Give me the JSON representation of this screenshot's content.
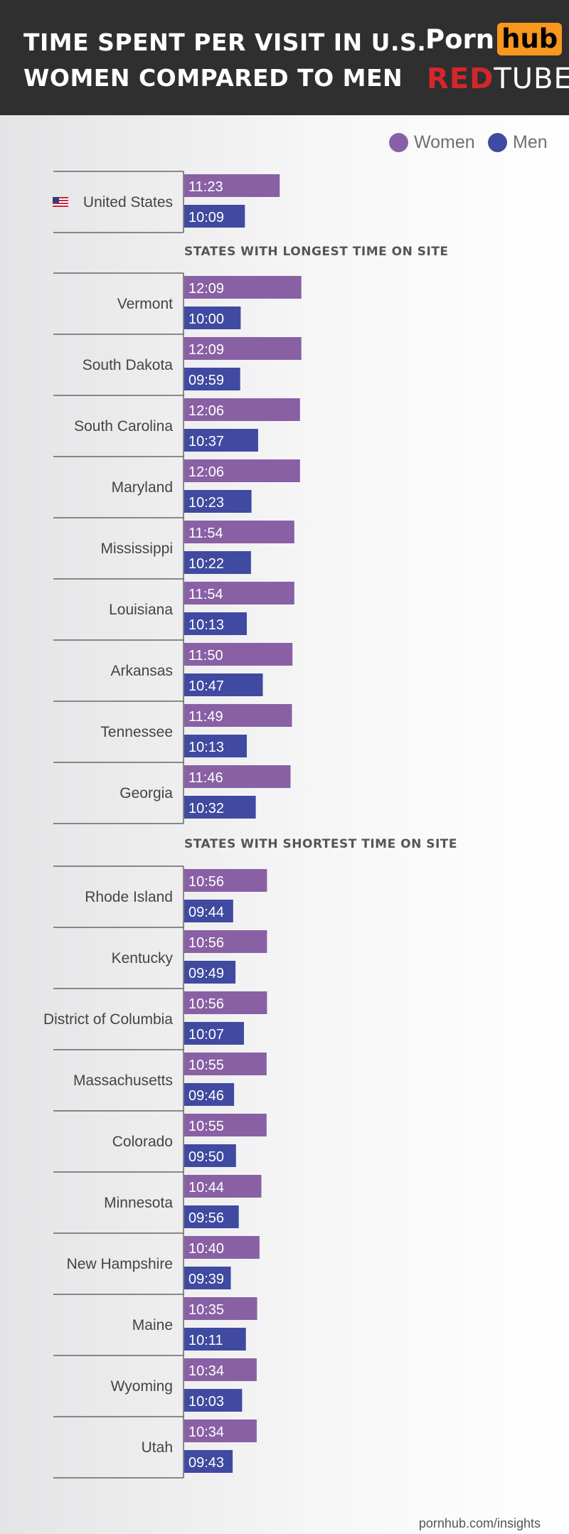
{
  "header": {
    "title_line1": "TIME SPENT PER VISIT IN U.S.",
    "title_line2": "WOMEN COMPARED TO MEN",
    "logo1_part1": "Porn",
    "logo1_part2": "hub",
    "logo2_part1": "RED",
    "logo2_part2": "TUBE"
  },
  "colors": {
    "women": "#8960a4",
    "men": "#3f4aa0",
    "header_bg": "#2f2f2f",
    "pornhub_orange": "#f7971d",
    "redtube_red": "#d5262b"
  },
  "legend": {
    "women": "Women",
    "men": "Men"
  },
  "footer": "pornhub.com/insights",
  "chart_data": {
    "type": "bar",
    "orientation": "horizontal",
    "title": "TIME SPENT PER VISIT IN U.S. WOMEN COMPARED TO MEN",
    "value_format": "mm:ss",
    "series_names": [
      "Women",
      "Men"
    ],
    "groups": [
      {
        "heading": "",
        "rows": [
          {
            "label": "United States",
            "women": "11:23",
            "men": "10:09",
            "icon": "us-flag-icon"
          }
        ]
      },
      {
        "heading": "STATES WITH LONGEST TIME ON SITE",
        "rows": [
          {
            "label": "Vermont",
            "women": "12:09",
            "men": "10:00"
          },
          {
            "label": "South Dakota",
            "women": "12:09",
            "men": "09:59"
          },
          {
            "label": "South Carolina",
            "women": "12:06",
            "men": "10:37"
          },
          {
            "label": "Maryland",
            "women": "12:06",
            "men": "10:23"
          },
          {
            "label": "Mississippi",
            "women": "11:54",
            "men": "10:22"
          },
          {
            "label": "Louisiana",
            "women": "11:54",
            "men": "10:13"
          },
          {
            "label": "Arkansas",
            "women": "11:50",
            "men": "10:47"
          },
          {
            "label": "Tennessee",
            "women": "11:49",
            "men": "10:13"
          },
          {
            "label": "Georgia",
            "women": "11:46",
            "men": "10:32"
          }
        ]
      },
      {
        "heading": "STATES WITH SHORTEST TIME ON SITE",
        "rows": [
          {
            "label": "Rhode Island",
            "women": "10:56",
            "men": "09:44"
          },
          {
            "label": "Kentucky",
            "women": "10:56",
            "men": "09:49"
          },
          {
            "label": "District of Columbia",
            "women": "10:56",
            "men": "10:07"
          },
          {
            "label": "Massachusetts",
            "women": "10:55",
            "men": "09:46"
          },
          {
            "label": "Colorado",
            "women": "10:55",
            "men": "09:50"
          },
          {
            "label": "Minnesota",
            "women": "10:44",
            "men": "09:56"
          },
          {
            "label": "New Hampshire",
            "women": "10:40",
            "men": "09:39"
          },
          {
            "label": "Maine",
            "women": "10:35",
            "men": "10:11"
          },
          {
            "label": "Wyoming",
            "women": "10:34",
            "men": "10:03"
          },
          {
            "label": "Utah",
            "women": "10:34",
            "men": "09:43"
          }
        ]
      }
    ]
  }
}
